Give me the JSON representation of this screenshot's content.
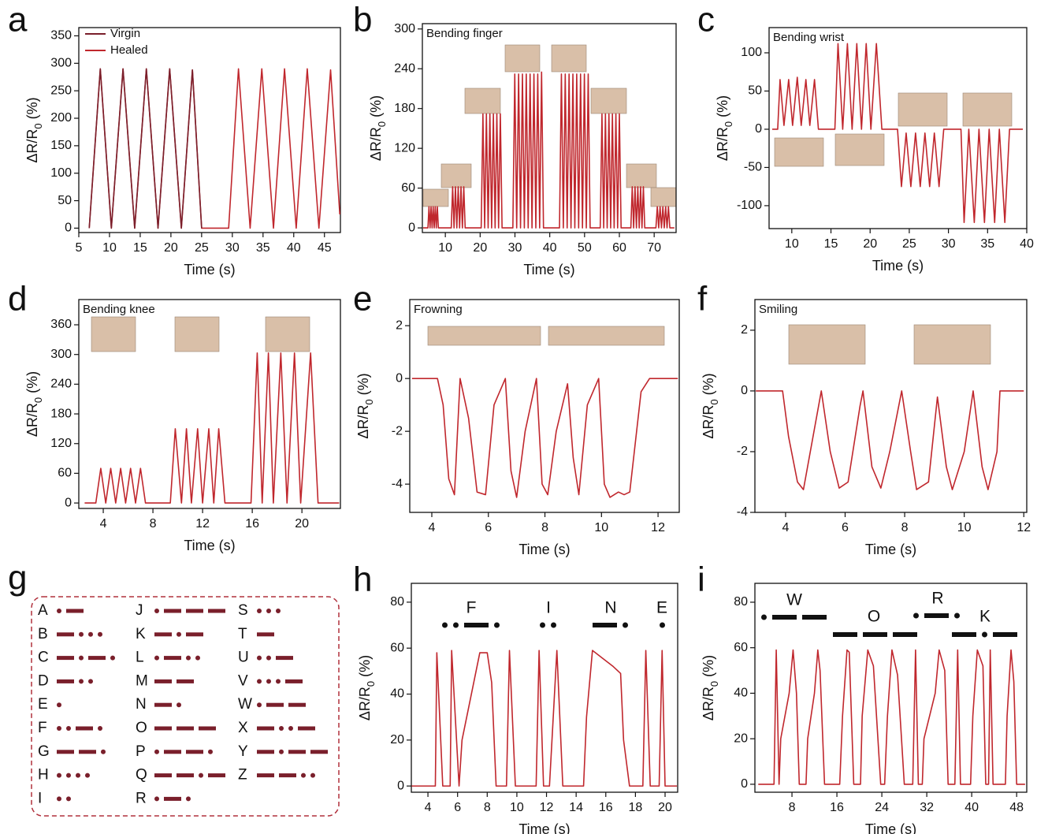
{
  "chart_data": [
    {
      "panel": "a",
      "type": "line",
      "x_label": "Time (s)",
      "y_label": [
        "ΔR/R",
        "0",
        " (%)"
      ],
      "xlim": [
        5,
        47.6
      ],
      "ylim": [
        -8,
        365
      ],
      "xticks": [
        5,
        10,
        15,
        20,
        25,
        30,
        35,
        40,
        45
      ],
      "yticks": [
        0,
        50,
        100,
        150,
        200,
        250,
        300,
        350
      ],
      "series": [
        {
          "name": "Virgin",
          "color": "#7a1f2b",
          "x": [
            6.7,
            8.5,
            10.3,
            12.2,
            14.1,
            16,
            17.9,
            19.8,
            21.7,
            23.5,
            25
          ],
          "values": [
            0,
            290,
            0,
            290,
            0,
            290,
            0,
            290,
            0,
            288,
            0
          ]
        },
        {
          "name": "Healed",
          "color": "#c0272d",
          "x": [
            6.7,
            8.5,
            10.3,
            12.2,
            14.1,
            16,
            17.9,
            19.8,
            21.7,
            23.5,
            25,
            29.4,
            31,
            32.9,
            34.8,
            36.7,
            38.5,
            40.4,
            42.2,
            44.1,
            46,
            47.5
          ],
          "values": [
            0,
            290,
            0,
            290,
            0,
            290,
            0,
            290,
            0,
            288,
            0,
            0,
            290,
            0,
            290,
            0,
            290,
            0,
            290,
            0,
            288,
            25
          ]
        }
      ]
    },
    {
      "panel": "b",
      "type": "line",
      "annotation": "Bending finger",
      "x_label": "Time (s)",
      "y_label": [
        "ΔR/R",
        "0",
        " (%)"
      ],
      "xlim": [
        3.4,
        76.3
      ],
      "ylim": [
        -7,
        308
      ],
      "xticks": [
        10,
        20,
        30,
        40,
        50,
        60,
        70
      ],
      "yticks": [
        0,
        60,
        120,
        180,
        240,
        300
      ],
      "series": [
        {
          "color": "#c0272d",
          "x": [
            3.6,
            4.9,
            5.0,
            5.3,
            5.6,
            5.9,
            6.2,
            6.5,
            6.8,
            7.1,
            7.4,
            7.7,
            8.0,
            11.7,
            12.1,
            12.5,
            12.9,
            13.3,
            13.7,
            14.1,
            14.5,
            14.9,
            15.3,
            15.7,
            20.3,
            20.8,
            21.3,
            21.8,
            22.3,
            22.8,
            23.3,
            23.8,
            24.3,
            24.8,
            25.3,
            25.8,
            26.3,
            29.4,
            29.95,
            30.5,
            31.05,
            31.6,
            32.15,
            32.7,
            33.25,
            33.8,
            34.35,
            34.9,
            35.45,
            36.0,
            36.55,
            37.1,
            37.65,
            38.2,
            42.8,
            43.35,
            43.9,
            44.45,
            45.0,
            45.55,
            46.1,
            46.65,
            47.2,
            47.75,
            48.3,
            48.85,
            49.4,
            49.95,
            50.5,
            51.05,
            51.6,
            54.5,
            55.0,
            55.5,
            56.0,
            56.5,
            57.0,
            57.5,
            58.0,
            58.5,
            59.0,
            59.5,
            60.0,
            60.5,
            63.3,
            63.7,
            64.1,
            64.5,
            64.9,
            65.3,
            65.7,
            66.1,
            66.5,
            66.9,
            67.3,
            70.5,
            70.9,
            71.3,
            71.7,
            72.1,
            72.5,
            72.9,
            73.3,
            73.7,
            74.1,
            74.5,
            75.8
          ],
          "values": [
            0,
            0,
            0,
            32,
            0,
            32,
            0,
            32,
            0,
            32,
            0,
            32,
            0,
            0,
            62,
            0,
            62,
            0,
            62,
            0,
            62,
            0,
            62,
            0,
            0,
            172,
            0,
            172,
            0,
            172,
            0,
            172,
            0,
            172,
            0,
            172,
            0,
            0,
            232,
            0,
            232,
            0,
            232,
            0,
            232,
            0,
            232,
            0,
            232,
            0,
            232,
            0,
            235,
            0,
            0,
            232,
            0,
            232,
            0,
            232,
            0,
            232,
            0,
            232,
            0,
            232,
            0,
            232,
            0,
            232,
            0,
            0,
            172,
            0,
            172,
            0,
            172,
            0,
            172,
            0,
            172,
            0,
            172,
            0,
            0,
            62,
            0,
            62,
            0,
            62,
            0,
            62,
            0,
            62,
            0,
            0,
            32,
            0,
            32,
            0,
            32,
            0,
            32,
            0,
            32,
            0,
            0
          ]
        }
      ]
    },
    {
      "panel": "c",
      "type": "line",
      "annotation": "Bending wrist",
      "x_label": "Time (s)",
      "y_label": [
        "ΔR/R",
        "0",
        " (%)"
      ],
      "xlim": [
        7.1,
        40
      ],
      "ylim": [
        -130,
        133
      ],
      "xticks": [
        10,
        15,
        20,
        25,
        30,
        35,
        40
      ],
      "yticks": [
        -100,
        -50,
        0,
        50,
        100
      ],
      "series": [
        {
          "color": "#c0272d",
          "x": [
            7.5,
            8.2,
            8.5,
            9.0,
            9.6,
            10.1,
            10.7,
            11.2,
            11.8,
            12.3,
            12.9,
            13.4,
            15.3,
            15.5,
            15.9,
            16.5,
            17.1,
            17.7,
            18.3,
            18.9,
            19.5,
            20.1,
            20.8,
            21.5,
            23.5,
            24.0,
            24.6,
            25.2,
            25.8,
            26.4,
            27.0,
            27.6,
            28.2,
            28.8,
            29.4,
            31.6,
            32.0,
            32.6,
            33.3,
            33.9,
            34.6,
            35.2,
            35.9,
            36.5,
            37.2,
            37.8,
            39.5
          ],
          "values": [
            0,
            0,
            65,
            5,
            65,
            5,
            68,
            5,
            65,
            5,
            65,
            0,
            0,
            0,
            112,
            0,
            112,
            0,
            112,
            0,
            112,
            0,
            112,
            0,
            0,
            -75,
            -5,
            -75,
            -5,
            -75,
            -5,
            -75,
            -5,
            -75,
            0,
            0,
            -122,
            0,
            -122,
            0,
            -122,
            0,
            -122,
            0,
            -122,
            0,
            0
          ]
        }
      ]
    },
    {
      "panel": "d",
      "type": "line",
      "annotation": "Bending knee",
      "x_label": "Time (s)",
      "y_label": [
        "ΔR/R",
        "0",
        " (%)"
      ],
      "xlim": [
        2.03,
        23.1
      ],
      "ylim": [
        -11,
        411
      ],
      "xticks": [
        4,
        8,
        12,
        16,
        20
      ],
      "yticks": [
        0,
        60,
        120,
        180,
        240,
        300,
        360
      ],
      "series": [
        {
          "color": "#c0272d",
          "x": [
            2.5,
            3.4,
            3.8,
            4.2,
            4.6,
            5.0,
            5.4,
            5.8,
            6.2,
            6.6,
            7.0,
            7.4,
            9.4,
            9.8,
            10.3,
            10.7,
            11.1,
            11.6,
            12.0,
            12.5,
            12.9,
            13.3,
            13.8,
            15.9,
            16.4,
            16.8,
            17.3,
            17.7,
            18.3,
            18.8,
            19.4,
            19.9,
            20.7,
            21.3,
            23.0
          ],
          "values": [
            0,
            0,
            70,
            0,
            70,
            0,
            70,
            0,
            70,
            0,
            70,
            0,
            0,
            150,
            0,
            150,
            0,
            150,
            0,
            150,
            0,
            150,
            0,
            0,
            303,
            0,
            303,
            0,
            303,
            0,
            303,
            0,
            303,
            0,
            0
          ]
        }
      ]
    },
    {
      "panel": "e",
      "type": "line",
      "annotation": "Frowning",
      "x_label": "Time (s)",
      "y_label": [
        "ΔR/R",
        "0",
        " (%)"
      ],
      "xlim": [
        3.22,
        12.75
      ],
      "ylim": [
        -5.07,
        2.99
      ],
      "xticks": [
        4,
        6,
        8,
        10,
        12
      ],
      "yticks": [
        -4,
        -2,
        0,
        2
      ],
      "series": [
        {
          "color": "#c0272d",
          "x": [
            3.3,
            4.2,
            4.4,
            4.6,
            4.8,
            5.0,
            5.3,
            5.6,
            5.9,
            6.2,
            6.6,
            6.8,
            7.0,
            7.3,
            7.7,
            7.9,
            8.1,
            8.4,
            8.8,
            9.0,
            9.2,
            9.5,
            9.9,
            10.1,
            10.3,
            10.6,
            10.8,
            11.0,
            11.4,
            11.7,
            12.7
          ],
          "values": [
            0,
            0,
            -1,
            -3.8,
            -4.4,
            0,
            -1.5,
            -4.3,
            -4.4,
            -1,
            0,
            -3.5,
            -4.5,
            -2,
            0,
            -4,
            -4.4,
            -2,
            -0.2,
            -3,
            -4.4,
            -1,
            0,
            -4,
            -4.5,
            -4.3,
            -4.4,
            -4.3,
            -0.5,
            0,
            0
          ]
        }
      ]
    },
    {
      "panel": "f",
      "type": "line",
      "annotation": "Smiling",
      "x_label": "Time (s)",
      "y_label": [
        "ΔR/R",
        "0",
        " (%)"
      ],
      "xlim": [
        2.97,
        12.1
      ],
      "ylim": [
        -4,
        3.01
      ],
      "xticks": [
        4,
        6,
        8,
        10,
        12
      ],
      "yticks": [
        -4,
        -2,
        0,
        2
      ],
      "series": [
        {
          "color": "#c0272d",
          "x": [
            3,
            3.9,
            4.1,
            4.4,
            4.6,
            5.2,
            5.5,
            5.8,
            6.1,
            6.5,
            6.6,
            6.9,
            7.2,
            7.5,
            7.9,
            8.2,
            8.4,
            8.8,
            9.1,
            9.4,
            9.6,
            10,
            10.3,
            10.6,
            10.8,
            11.1,
            11.2,
            12
          ],
          "values": [
            0,
            0,
            -1.5,
            -3,
            -3.25,
            0,
            -2,
            -3.2,
            -3,
            -0.5,
            0,
            -2.5,
            -3.2,
            -2,
            0,
            -2,
            -3.25,
            -3,
            -0.2,
            -2.5,
            -3.25,
            -2,
            0,
            -2.5,
            -3.25,
            -2,
            0,
            0
          ]
        }
      ]
    },
    {
      "panel": "h",
      "type": "line",
      "annotations": [
        "F",
        "I",
        "N",
        "E"
      ],
      "x_label": "Time (s)",
      "y_label": [
        "ΔR/R",
        "0",
        " (%)"
      ],
      "xlim": [
        2.88,
        20.85
      ],
      "ylim": [
        -2.7,
        88.2
      ],
      "xticks": [
        4,
        6,
        8,
        10,
        12,
        14,
        16,
        18,
        20
      ],
      "yticks": [
        0,
        20,
        40,
        60,
        80
      ],
      "series": [
        {
          "color": "#c0272d",
          "x": [
            2.9,
            4.5,
            4.6,
            5.0,
            5.5,
            5.6,
            6.1,
            6.3,
            7.5,
            8.0,
            8.3,
            8.6,
            9.3,
            9.5,
            9.9,
            11.3,
            11.5,
            11.8,
            12.2,
            12.7,
            13.1,
            14.5,
            14.7,
            15.1,
            16.5,
            17.0,
            17.2,
            17.6,
            18.5,
            18.7,
            19.0,
            19.6,
            19.8,
            20.0,
            20.8
          ],
          "values": [
            0,
            0,
            58,
            0,
            0,
            59,
            0,
            20,
            58,
            58,
            45,
            0,
            0,
            59,
            0,
            0,
            59,
            0,
            0,
            59,
            0,
            0,
            30,
            59,
            52,
            49,
            20,
            0,
            0,
            59,
            0,
            0,
            59,
            0,
            0
          ]
        }
      ]
    },
    {
      "panel": "i",
      "type": "line",
      "annotations": [
        "W",
        "O",
        "R",
        "K"
      ],
      "x_label": "Time (s)",
      "y_label": [
        "ΔR/R",
        "0",
        " (%)"
      ],
      "xlim": [
        1.4,
        49.8
      ],
      "ylim": [
        -3.5,
        88.3
      ],
      "xticks": [
        8,
        16,
        24,
        32,
        40,
        48
      ],
      "yticks": [
        0,
        20,
        40,
        60,
        80
      ],
      "series": [
        {
          "color": "#c0272d",
          "x": [
            2,
            4.8,
            5.2,
            5.7,
            6.0,
            7.5,
            8.2,
            8.8,
            9.3,
            10.5,
            10.8,
            12.0,
            12.6,
            13.0,
            13.8,
            16.5,
            17.0,
            17.8,
            18.2,
            19.0,
            20.2,
            20.5,
            21.5,
            22.5,
            23.8,
            24.5,
            25,
            25.8,
            26.8,
            28,
            29.5,
            30,
            30.5,
            31.2,
            31.5,
            33.5,
            34.2,
            35.2,
            35.8,
            37,
            37.5,
            38,
            39.8,
            40.2,
            41,
            42,
            42.5,
            43,
            43.3,
            43.8,
            46,
            46.3,
            47,
            47.5,
            48,
            49.5
          ],
          "values": [
            0,
            0,
            59,
            0,
            20,
            40,
            59,
            40,
            0,
            0,
            20,
            40,
            59,
            50,
            0,
            0,
            30,
            59,
            58,
            0,
            0,
            30,
            59,
            52,
            0,
            0,
            30,
            59,
            48,
            0,
            0,
            59,
            0,
            0,
            20,
            40,
            59,
            50,
            0,
            0,
            59,
            0,
            0,
            30,
            59,
            52,
            0,
            0,
            59,
            0,
            0,
            30,
            59,
            45,
            0,
            0
          ]
        }
      ]
    }
  ],
  "morse_table": {
    "panel": "g",
    "letters": [
      "A",
      "B",
      "C",
      "D",
      "E",
      "F",
      "G",
      "H",
      "I",
      "J",
      "K",
      "L",
      "M",
      "N",
      "O",
      "P",
      "Q",
      "R",
      "S",
      "T",
      "U",
      "V",
      "W",
      "X",
      "Y",
      "Z"
    ]
  }
}
